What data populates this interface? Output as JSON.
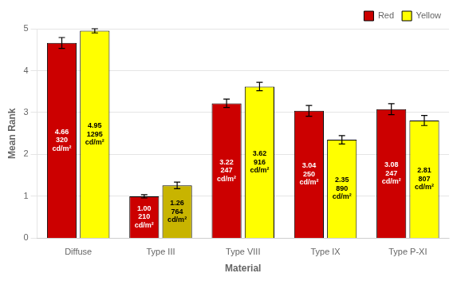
{
  "chart_data": {
    "type": "bar",
    "categories": [
      "Diffuse",
      "Type III",
      "Type VIII",
      "Type IX",
      "Type P-XI"
    ],
    "series": [
      {
        "name": "Red",
        "color": "#CC0000",
        "values": [
          4.66,
          1.0,
          3.22,
          3.04,
          3.08
        ],
        "errors": [
          0.13,
          0.04,
          0.1,
          0.13,
          0.13
        ],
        "value_labels": [
          "4.66\n320\ncd/m²",
          "1.00\n210\ncd/m²",
          "3.22\n247\ncd/m²",
          "3.04\n250\ncd/m²",
          "3.08\n247\ncd/m²"
        ]
      },
      {
        "name": "Yellow",
        "color": "#FFFF00",
        "colors": [
          "#FFFF00",
          "#C8B400",
          "#FFFF00",
          "#FFFF00",
          "#FFFF00"
        ],
        "values": [
          4.95,
          1.26,
          3.62,
          2.35,
          2.81
        ],
        "errors": [
          0.05,
          0.08,
          0.1,
          0.1,
          0.12
        ],
        "value_labels": [
          "4.95\n1295\ncd/m²",
          "1.26\n764\ncd/m²",
          "3.62\n916\ncd/m²",
          "2.35\n890\ncd/m²",
          "2.81\n807\ncd/m²"
        ]
      }
    ],
    "xlabel": "Material",
    "ylabel": "Mean Rank",
    "ylim": [
      0,
      5
    ],
    "yticks": [
      0,
      1,
      2,
      3,
      4,
      5
    ],
    "grid": true,
    "legend": "upper right",
    "data_labels": true
  }
}
